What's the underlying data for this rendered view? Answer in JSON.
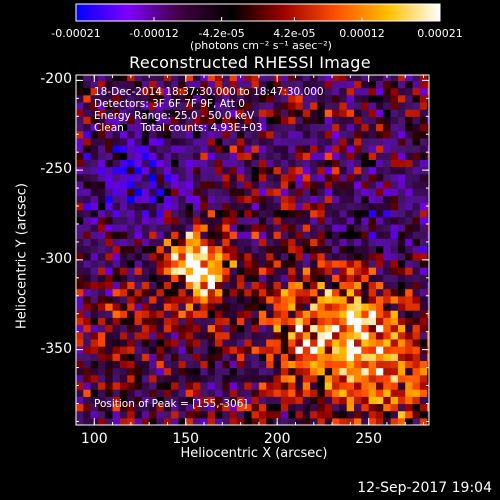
{
  "chart_data": {
    "type": "heatmap",
    "title": "Reconstructed RHESSI Image",
    "colorbar": {
      "ticks": [
        "-0.00021",
        "-0.00012",
        "-4.2e-05",
        "4.2e-05",
        "0.00012",
        "0.00021"
      ],
      "range": [
        -0.00021,
        0.00021
      ],
      "units": "(photons cm⁻² s⁻¹ asec⁻²)",
      "colors": [
        "#0000ff",
        "#8000ff",
        "#400040",
        "#000000",
        "#a00000",
        "#ff5000",
        "#ffc000",
        "#ffffff"
      ]
    },
    "info": {
      "time": "18-Dec-2014 18:37:30.000 to 18:47:30.000",
      "detectors": "Detectors: 3F 6F 7F 9F, Att 0",
      "energy": "Energy Range: 25.0 - 50.0 keV",
      "clean": "Clean     Total counts: 4.93E+03"
    },
    "peak_label": "Position of Peak = [155,-306]",
    "xlabel": "Heliocentric X (arcsec)",
    "ylabel": "Heliocentric Y (arcsec)",
    "xlim": [
      90,
      283
    ],
    "ylim": [
      -392,
      -197
    ],
    "xticks": [
      {
        "value": 100,
        "label": "100"
      },
      {
        "value": 150,
        "label": "150"
      },
      {
        "value": 200,
        "label": "200"
      },
      {
        "value": 250,
        "label": "250"
      }
    ],
    "yticks": [
      {
        "value": -200,
        "label": "-200"
      },
      {
        "value": -250,
        "label": "-250"
      },
      {
        "value": -300,
        "label": "-300"
      },
      {
        "value": -350,
        "label": "-350"
      }
    ],
    "sources": [
      {
        "x": 155,
        "y": -306,
        "sigma": 13,
        "amp": 1.0
      },
      {
        "x": 145,
        "y": -296,
        "sigma": 8,
        "amp": 0.35
      },
      {
        "x": 232,
        "y": -345,
        "sigma": 26,
        "amp": 0.85
      },
      {
        "x": 262,
        "y": -372,
        "sigma": 16,
        "amp": 0.45
      },
      {
        "x": 115,
        "y": -345,
        "sigma": 14,
        "amp": 0.2
      },
      {
        "x": 120,
        "y": -258,
        "sigma": 22,
        "amp": -0.45
      },
      {
        "x": 258,
        "y": -280,
        "sigma": 18,
        "amp": -0.3
      }
    ]
  },
  "footer": {
    "timestamp": "12-Sep-2017 19:04"
  }
}
